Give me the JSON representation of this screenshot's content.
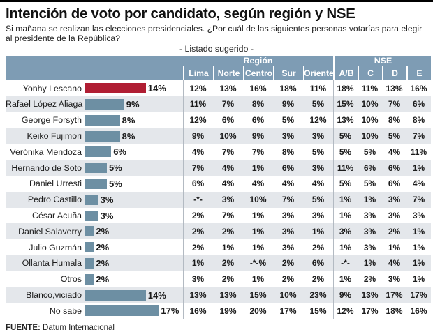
{
  "page": {
    "title": "Intención de voto por candidato, según región y NSE",
    "subtitle": "Si mañana se realizan las elecciones presidenciales. ¿Por cuál de las siguientes personas votarías para elegir al presidente de la República?",
    "list_note": "- Listado sugerido -",
    "source_label": "FUENTE:",
    "source_value": "Datum Internacional"
  },
  "chart_data": {
    "type": "table",
    "title": "Intención de voto por candidato, según región y NSE",
    "bar_unit": "%",
    "group_headers": [
      "Región",
      "NSE"
    ],
    "region_columns": [
      "Lima",
      "Norte",
      "Centro",
      "Sur",
      "Oriente"
    ],
    "nse_columns": [
      "A/B",
      "C",
      "D",
      "E"
    ],
    "colors": {
      "bar_default": "#6d8fa3",
      "bar_highlight": "#b01e33",
      "header_bg": "#7e9cb4",
      "stripe_bg": "#e4e7eb"
    },
    "rows": [
      {
        "name": "Yonhy Lescano",
        "total": 14,
        "total_label": "14%",
        "highlight": true,
        "region": [
          "12%",
          "13%",
          "16%",
          "18%",
          "11%"
        ],
        "nse": [
          "18%",
          "11%",
          "13%",
          "16%"
        ]
      },
      {
        "name": "Rafael López Aliaga",
        "total": 9,
        "total_label": "9%",
        "highlight": false,
        "region": [
          "11%",
          "7%",
          "8%",
          "9%",
          "5%"
        ],
        "nse": [
          "15%",
          "10%",
          "7%",
          "6%"
        ]
      },
      {
        "name": "George Forsyth",
        "total": 8,
        "total_label": "8%",
        "highlight": false,
        "region": [
          "12%",
          "6%",
          "6%",
          "5%",
          "12%"
        ],
        "nse": [
          "13%",
          "10%",
          "8%",
          "8%"
        ]
      },
      {
        "name": "Keiko Fujimori",
        "total": 8,
        "total_label": "8%",
        "highlight": false,
        "region": [
          "9%",
          "10%",
          "9%",
          "3%",
          "3%"
        ],
        "nse": [
          "5%",
          "10%",
          "5%",
          "7%"
        ]
      },
      {
        "name": "Verónika Mendoza",
        "total": 6,
        "total_label": "6%",
        "highlight": false,
        "region": [
          "4%",
          "7%",
          "7%",
          "8%",
          "5%"
        ],
        "nse": [
          "5%",
          "5%",
          "4%",
          "11%"
        ]
      },
      {
        "name": "Hernando de Soto",
        "total": 5,
        "total_label": "5%",
        "highlight": false,
        "region": [
          "7%",
          "4%",
          "1%",
          "6%",
          "3%"
        ],
        "nse": [
          "11%",
          "6%",
          "6%",
          "1%"
        ]
      },
      {
        "name": "Daniel Urresti",
        "total": 5,
        "total_label": "5%",
        "highlight": false,
        "region": [
          "6%",
          "4%",
          "4%",
          "4%",
          "4%"
        ],
        "nse": [
          "5%",
          "5%",
          "6%",
          "4%"
        ]
      },
      {
        "name": "Pedro Castillo",
        "total": 3,
        "total_label": "3%",
        "highlight": false,
        "region": [
          "-*-",
          "3%",
          "10%",
          "7%",
          "5%"
        ],
        "nse": [
          "1%",
          "1%",
          "3%",
          "7%"
        ]
      },
      {
        "name": "César Acuña",
        "total": 3,
        "total_label": "3%",
        "highlight": false,
        "region": [
          "2%",
          "7%",
          "1%",
          "3%",
          "3%"
        ],
        "nse": [
          "1%",
          "3%",
          "3%",
          "3%"
        ]
      },
      {
        "name": "Daniel Salaverry",
        "total": 2,
        "total_label": "2%",
        "highlight": false,
        "region": [
          "2%",
          "2%",
          "1%",
          "3%",
          "1%"
        ],
        "nse": [
          "3%",
          "3%",
          "2%",
          "1%"
        ]
      },
      {
        "name": "Julio Guzmán",
        "total": 2,
        "total_label": "2%",
        "highlight": false,
        "region": [
          "2%",
          "1%",
          "1%",
          "3%",
          "2%"
        ],
        "nse": [
          "1%",
          "3%",
          "1%",
          "1%"
        ]
      },
      {
        "name": "Ollanta Humala",
        "total": 2,
        "total_label": "2%",
        "highlight": false,
        "region": [
          "1%",
          "2%",
          "-*-%",
          "2%",
          "6%"
        ],
        "nse": [
          "-*-",
          "1%",
          "4%",
          "1%"
        ]
      },
      {
        "name": "Otros",
        "total": 2,
        "total_label": "2%",
        "highlight": false,
        "region": [
          "3%",
          "2%",
          "1%",
          "2%",
          "2%"
        ],
        "nse": [
          "1%",
          "2%",
          "3%",
          "1%"
        ]
      },
      {
        "name": "Blanco,viciado",
        "total": 14,
        "total_label": "14%",
        "highlight": false,
        "region": [
          "13%",
          "13%",
          "15%",
          "10%",
          "23%"
        ],
        "nse": [
          "9%",
          "13%",
          "17%",
          "17%"
        ]
      },
      {
        "name": "No sabe",
        "total": 17,
        "total_label": "17%",
        "highlight": false,
        "region": [
          "16%",
          "19%",
          "20%",
          "17%",
          "15%"
        ],
        "nse": [
          "12%",
          "17%",
          "18%",
          "16%"
        ]
      }
    ]
  }
}
